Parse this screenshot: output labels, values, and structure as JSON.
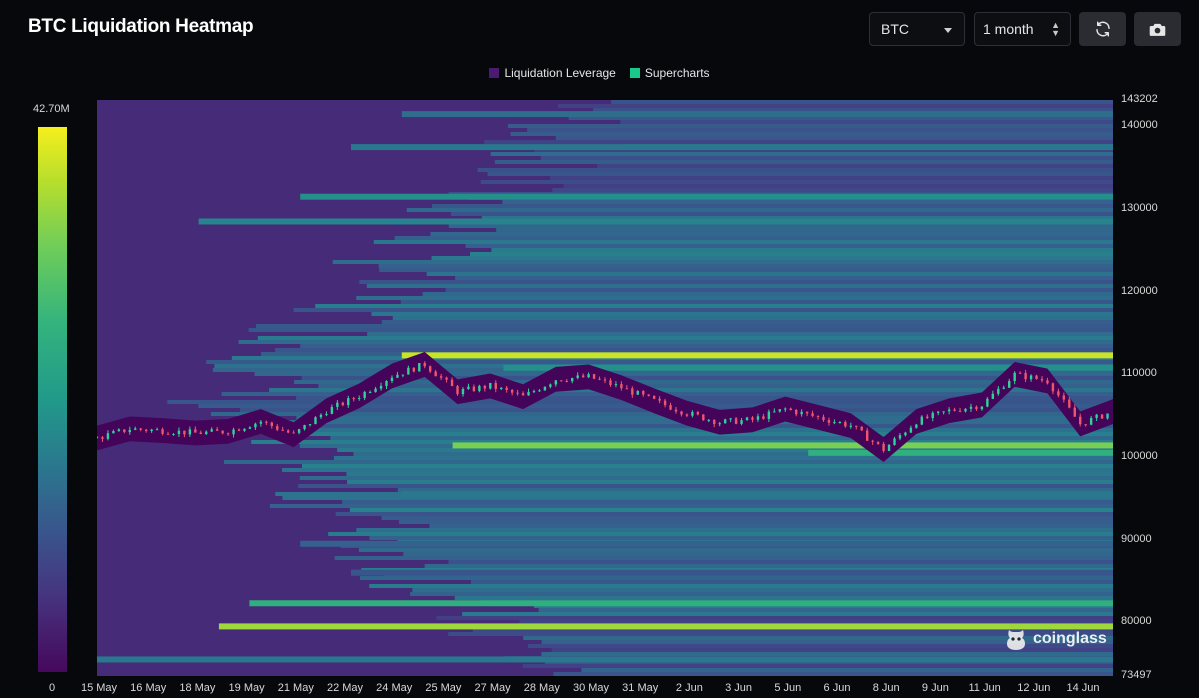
{
  "header": {
    "title": "BTC Liquidation Heatmap"
  },
  "controls": {
    "coin_select": "BTC",
    "range_select": "1 month",
    "refresh_icon": "refresh-icon",
    "camera_icon": "camera-icon"
  },
  "legend": [
    {
      "label": "Liquidation Leverage",
      "color": "#4b1a73"
    },
    {
      "label": "Supercharts",
      "color": "#19c98a"
    }
  ],
  "colorbar": {
    "max_label": "42.70M",
    "min_label": "0"
  },
  "watermark": {
    "text": "coinglass"
  },
  "chart_data": {
    "type": "heatmap",
    "title": "BTC Liquidation Heatmap",
    "y_axis": {
      "top_label": "143202",
      "bottom_label": "73497",
      "ticks": [
        "140000",
        "130000",
        "120000",
        "110000",
        "100000",
        "90000",
        "80000"
      ],
      "ylim": [
        73497,
        143202
      ]
    },
    "x_axis": {
      "ticks": [
        "15 May",
        "16 May",
        "18 May",
        "19 May",
        "21 May",
        "22 May",
        "24 May",
        "25 May",
        "27 May",
        "28 May",
        "30 May",
        "31 May",
        "2 Jun",
        "3 Jun",
        "5 Jun",
        "6 Jun",
        "8 Jun",
        "9 Jun",
        "11 Jun",
        "12 Jun",
        "14 Jun"
      ]
    },
    "colorscale": {
      "min": 0,
      "max": 42700000,
      "max_label": "42.70M"
    },
    "liquidation_bands": [
      {
        "price": 112300,
        "intensity": 0.95,
        "x_start": 0.3
      },
      {
        "price": 110800,
        "intensity": 0.55,
        "x_start": 0.4
      },
      {
        "price": 101400,
        "intensity": 0.85,
        "x_start": 0.35
      },
      {
        "price": 100500,
        "intensity": 0.7,
        "x_start": 0.7
      },
      {
        "price": 82300,
        "intensity": 0.7,
        "x_start": 0.15
      },
      {
        "price": 79500,
        "intensity": 0.9,
        "x_start": 0.12
      },
      {
        "price": 131500,
        "intensity": 0.55,
        "x_start": 0.2
      },
      {
        "price": 128500,
        "intensity": 0.5,
        "x_start": 0.1
      },
      {
        "price": 137500,
        "intensity": 0.45,
        "x_start": 0.25
      },
      {
        "price": 141500,
        "intensity": 0.4,
        "x_start": 0.3
      },
      {
        "price": 95500,
        "intensity": 0.45,
        "x_start": 0.3
      },
      {
        "price": 89500,
        "intensity": 0.35,
        "x_start": 0.2
      },
      {
        "price": 86000,
        "intensity": 0.3,
        "x_start": 0.25
      },
      {
        "price": 75500,
        "intensity": 0.45,
        "x_start": 0.0
      }
    ],
    "price_series": {
      "description": "BTC close approx per index over 1 month",
      "x_index": [
        0,
        1,
        2,
        3,
        4,
        5,
        6,
        7,
        8,
        9,
        10,
        11,
        12,
        13,
        14,
        15,
        16,
        17,
        18,
        19,
        20,
        21,
        22,
        23,
        24,
        25,
        26,
        27,
        28,
        29,
        30,
        31
      ],
      "close": [
        102300,
        103400,
        103200,
        102900,
        103100,
        104300,
        102700,
        105600,
        107400,
        109800,
        111200,
        107900,
        108600,
        107300,
        109400,
        109700,
        108400,
        106800,
        105300,
        104200,
        104500,
        105800,
        104800,
        103800,
        100900,
        104300,
        105600,
        106300,
        110000,
        109200,
        104000,
        105500
      ]
    }
  }
}
